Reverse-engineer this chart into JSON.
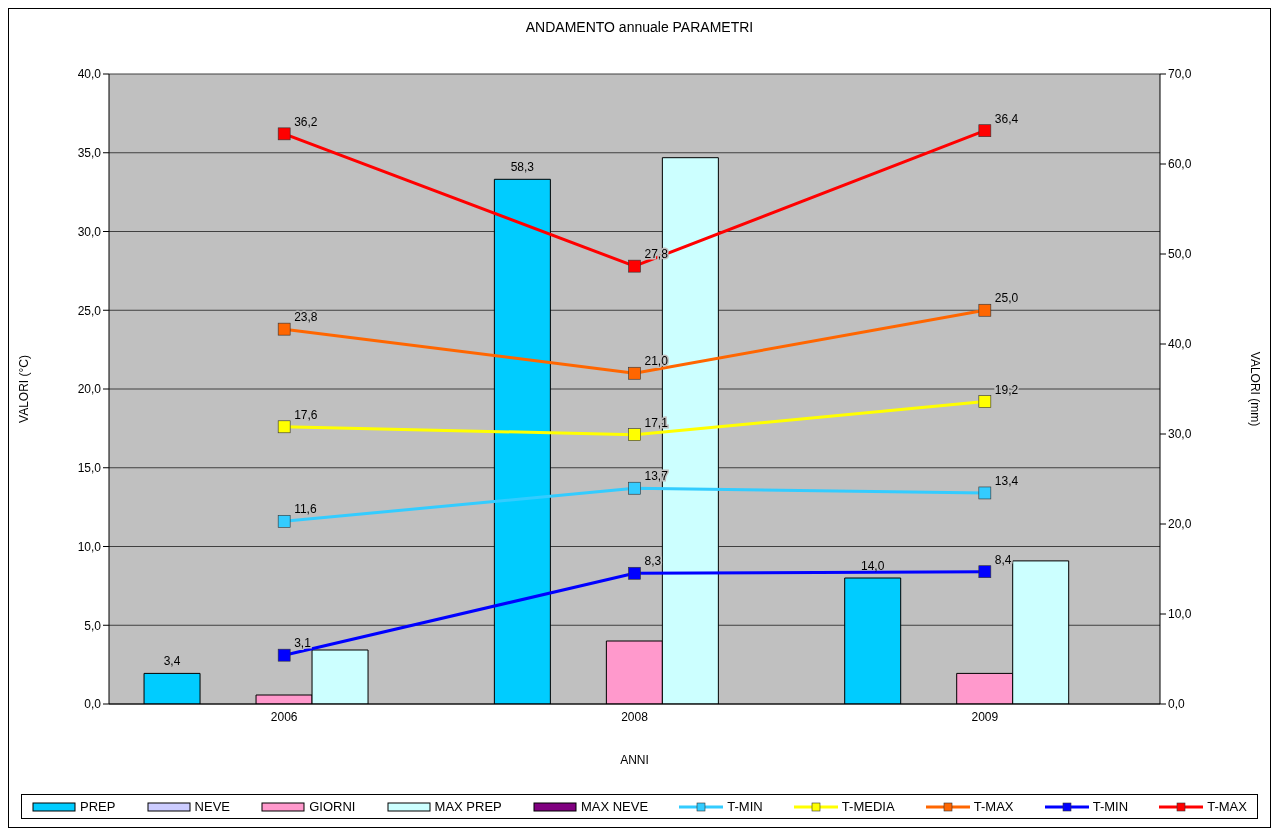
{
  "chart_data": {
    "type": "bar",
    "title": "ANDAMENTO annuale PARAMETRI",
    "xlabel": "ANNI",
    "ylabel": "VALORI (°C)",
    "y2label": "VALORI (mm)",
    "categories": [
      "2006",
      "2008",
      "2009"
    ],
    "series": [
      {
        "name": "PREP",
        "axis": "y2",
        "color": "#00ccff",
        "values": [
          3.4,
          58.3,
          14.0
        ],
        "value_labels": [
          "3,4",
          "58,3",
          "14,0"
        ]
      },
      {
        "name": "NEVE",
        "axis": "y2",
        "color": "#ccccff",
        "values": [
          0,
          0,
          0
        ]
      },
      {
        "name": "GIORNI",
        "axis": "y2",
        "color": "#ff99cc",
        "values": [
          1.0,
          7.0,
          3.4
        ]
      },
      {
        "name": "MAX PREP",
        "axis": "y2",
        "color": "#ccffff",
        "values": [
          6.0,
          60.7,
          15.9
        ]
      },
      {
        "name": "MAX NEVE",
        "axis": "y2",
        "color": "#800080",
        "values": [
          0,
          0,
          0
        ]
      },
      {
        "name": "T-MIN",
        "type": "line",
        "color": "#33ccff",
        "values": [
          11.6,
          13.7,
          13.4
        ],
        "value_labels": [
          "11,6",
          "13,7",
          "13,4"
        ]
      },
      {
        "name": "T-MEDIA",
        "type": "line",
        "color": "#ffff00",
        "values": [
          17.6,
          17.1,
          19.2
        ],
        "value_labels": [
          "17,6",
          "17,1",
          "19,2"
        ]
      },
      {
        "name": "T-MAX",
        "type": "line",
        "color": "#ff6600",
        "values": [
          23.8,
          21.0,
          25.0
        ],
        "value_labels": [
          "23,8",
          "21,0",
          "25,0"
        ]
      },
      {
        "name": "T-MIN",
        "type": "line",
        "color": "#0000ff",
        "values": [
          3.1,
          8.3,
          8.4
        ],
        "value_labels": [
          "3,1",
          "8,3",
          "8,4"
        ]
      },
      {
        "name": "T-MAX",
        "type": "line",
        "color": "#ff0000",
        "values": [
          36.2,
          27.8,
          36.4
        ],
        "value_labels": [
          "36,2",
          "27,8",
          "36,4"
        ]
      }
    ],
    "ylim": [
      0,
      40
    ],
    "yticks": [
      {
        "value": 0,
        "label": "0,0"
      },
      {
        "value": 5,
        "label": "5,0"
      },
      {
        "value": 10,
        "label": "10,0"
      },
      {
        "value": 15,
        "label": "15,0"
      },
      {
        "value": 20,
        "label": "20,0"
      },
      {
        "value": 25,
        "label": "25,0"
      },
      {
        "value": 30,
        "label": "30,0"
      },
      {
        "value": 35,
        "label": "35,0"
      },
      {
        "value": 40,
        "label": "40,0"
      }
    ],
    "y2lim": [
      0,
      70
    ],
    "y2ticks": [
      {
        "value": 0,
        "label": "0,0"
      },
      {
        "value": 10,
        "label": "10,0"
      },
      {
        "value": 20,
        "label": "20,0"
      },
      {
        "value": 30,
        "label": "30,0"
      },
      {
        "value": 40,
        "label": "40,0"
      },
      {
        "value": 50,
        "label": "50,0"
      },
      {
        "value": 60,
        "label": "60,0"
      },
      {
        "value": 70,
        "label": "70,0"
      }
    ],
    "grid": "y",
    "legend": "bottom",
    "marker": "square",
    "line_style": "solid"
  }
}
